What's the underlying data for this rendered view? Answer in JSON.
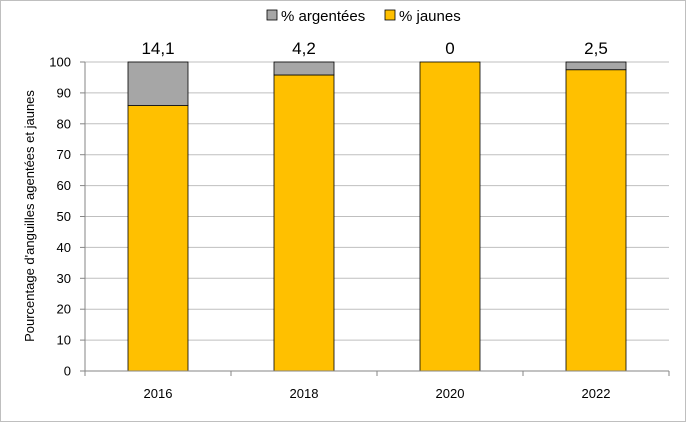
{
  "chart_data": {
    "type": "bar",
    "stacked": true,
    "categories": [
      "2016",
      "2018",
      "2020",
      "2022"
    ],
    "series": [
      {
        "name": "% argentées",
        "values": [
          14.1,
          4.2,
          0,
          2.5
        ],
        "color": "#a6a6a6"
      },
      {
        "name": "% jaunes",
        "values": [
          85.9,
          95.8,
          100,
          97.5
        ],
        "color": "#ffc000"
      }
    ],
    "data_labels": [
      "14,1",
      "4,2",
      "0",
      "2,5"
    ],
    "ylabel": "Pourcentage d'anguilles agentées et jaunes",
    "ylim": [
      0,
      100
    ],
    "yticks": [
      "0",
      "10",
      "20",
      "30",
      "40",
      "50",
      "60",
      "70",
      "80",
      "90",
      "100"
    ],
    "grid": true,
    "legend_position": "top"
  }
}
